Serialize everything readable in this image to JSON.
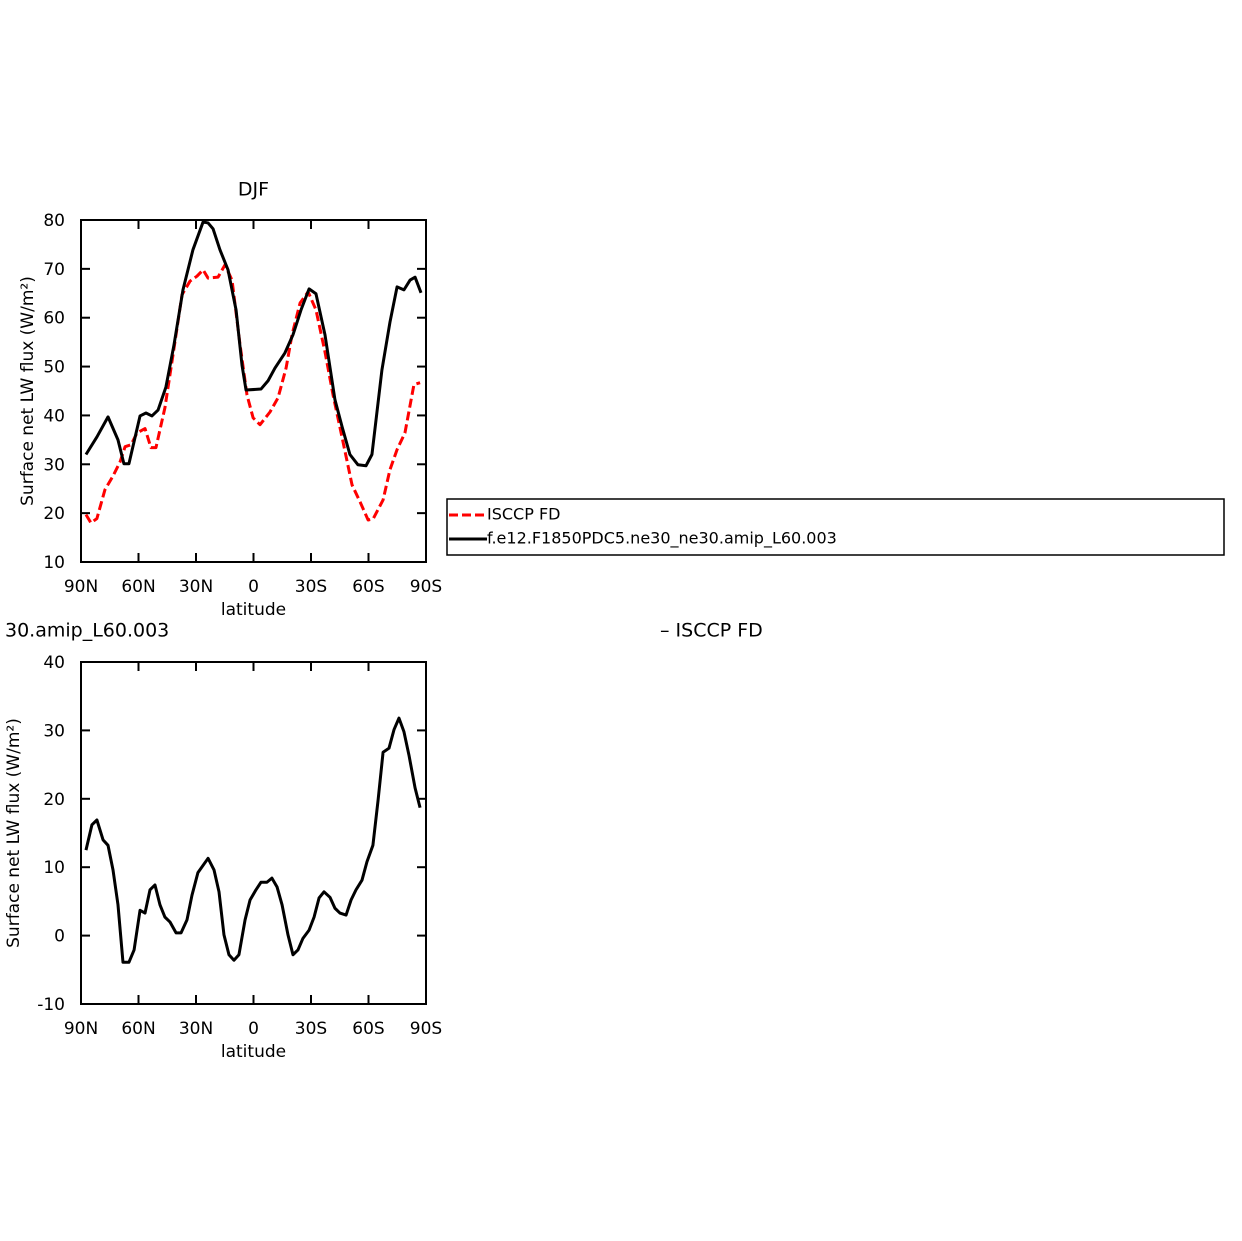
{
  "chart_data": [
    {
      "type": "line",
      "title": "DJF",
      "xlabel": "latitude",
      "ylabel": "Surface net LW flux (W/m²)",
      "xlim": [
        90,
        -90
      ],
      "xticks": [
        {
          "value": 90,
          "label": "90N"
        },
        {
          "value": 60,
          "label": "60N"
        },
        {
          "value": 30,
          "label": "30N"
        },
        0,
        {
          "value": -30,
          "label": "30S"
        },
        {
          "value": -60,
          "label": "60S"
        },
        {
          "value": -90,
          "label": "90S"
        }
      ],
      "ylim": [
        10,
        80
      ],
      "yticks": [
        10,
        20,
        30,
        40,
        50,
        60,
        70,
        80
      ],
      "legend": "right",
      "series": [
        {
          "name": "ISCCP FD",
          "color": "#ff0000",
          "line_style": "dashed",
          "x": [
            87.4,
            84.8,
            81.7,
            77.5,
            73.3,
            69.6,
            67.0,
            63.9,
            60.8,
            56.6,
            53.5,
            50.9,
            46.2,
            42.0,
            37.3,
            33.1,
            29.5,
            26.3,
            23.7,
            18.5,
            14.9,
            11.2,
            7.0,
            3.4,
            0.2,
            -3.4,
            -8.6,
            -12.8,
            -17.0,
            -20.1,
            -24.3,
            -28.5,
            -32.6,
            -37.3,
            -41.5,
            -46.7,
            -51.4,
            -55.6,
            -59.8,
            -62.4,
            -67.6,
            -71.2,
            -74.9,
            -79.0,
            -83.7,
            -86.9
          ],
          "values": [
            19.7,
            18.0,
            18.9,
            24.8,
            27.6,
            30.5,
            33.6,
            34.0,
            36.4,
            37.3,
            33.4,
            33.4,
            41.6,
            52.4,
            64.7,
            67.5,
            68.5,
            69.8,
            68.1,
            68.3,
            70.8,
            67.7,
            54.4,
            44.2,
            39.5,
            38.1,
            40.7,
            43.6,
            49.7,
            56.5,
            63.0,
            65.3,
            61.6,
            53.0,
            44.2,
            34.6,
            25.8,
            22.3,
            18.6,
            18.8,
            22.7,
            28.9,
            33.0,
            36.4,
            46.3,
            46.7
          ]
        },
        {
          "name": "f.e12.F1850PDC5.ne30_ne30.amip_L60.003",
          "color": "#000000",
          "line_style": "solid",
          "x": [
            87.4,
            81.7,
            75.9,
            70.7,
            67.6,
            65.0,
            59.2,
            56.1,
            53.0,
            49.8,
            45.7,
            41.5,
            36.8,
            31.6,
            26.3,
            23.7,
            21.1,
            17.5,
            13.3,
            9.1,
            6.0,
            3.9,
            -3.9,
            -7.6,
            -11.2,
            -16.4,
            -20.6,
            -24.8,
            -29.0,
            -32.6,
            -37.3,
            -42.5,
            -46.2,
            -50.3,
            -54.5,
            -58.7,
            -61.8,
            -67.0,
            -71.2,
            -74.9,
            -78.5,
            -81.7,
            -84.3,
            -87.4
          ],
          "values": [
            32.0,
            35.6,
            39.7,
            35.0,
            30.1,
            30.1,
            39.9,
            40.5,
            39.9,
            41.1,
            45.8,
            54.4,
            65.7,
            73.9,
            79.6,
            79.4,
            78.2,
            73.9,
            69.8,
            61.6,
            50.3,
            45.2,
            45.4,
            47.1,
            49.7,
            52.8,
            56.5,
            61.6,
            65.9,
            64.9,
            56.5,
            43.2,
            37.7,
            32.0,
            29.9,
            29.7,
            32.0,
            49.3,
            59.1,
            66.3,
            65.7,
            67.7,
            68.3,
            65.1
          ]
        }
      ]
    },
    {
      "type": "line",
      "title_left": "30.amip_L60.003",
      "title_right": "– ISCCP FD",
      "xlabel": "latitude",
      "ylabel": "Surface net LW flux (W/m²)",
      "xlim": [
        90,
        -90
      ],
      "xticks": [
        {
          "value": 90,
          "label": "90N"
        },
        {
          "value": 60,
          "label": "60N"
        },
        {
          "value": 30,
          "label": "30N"
        },
        0,
        {
          "value": -30,
          "label": "30S"
        },
        {
          "value": -60,
          "label": "60S"
        },
        {
          "value": -90,
          "label": "90S"
        }
      ],
      "ylim": [
        -10,
        40
      ],
      "yticks": [
        -10,
        0,
        10,
        20,
        30,
        40
      ],
      "color": "#000000",
      "x": [
        87.4,
        84.3,
        81.7,
        78.5,
        75.9,
        73.3,
        70.7,
        68.1,
        65.0,
        62.3,
        59.2,
        56.6,
        54.0,
        51.4,
        48.8,
        46.2,
        43.6,
        40.4,
        37.8,
        34.7,
        32.1,
        29.0,
        23.7,
        20.6,
        18.0,
        15.4,
        12.8,
        10.2,
        7.6,
        4.4,
        1.8,
        -1.3,
        -3.9,
        -7.0,
        -9.6,
        -12.3,
        -14.9,
        -18.0,
        -20.6,
        -23.2,
        -25.8,
        -29.0,
        -31.6,
        -34.2,
        -36.8,
        -39.9,
        -42.5,
        -45.1,
        -48.3,
        -50.9,
        -53.5,
        -56.6,
        -59.2,
        -62.3,
        -65.0,
        -67.6,
        -70.7,
        -73.3,
        -75.9,
        -78.5,
        -81.1,
        -84.3,
        -86.9
      ],
      "values": [
        12.5,
        16.2,
        16.9,
        14.0,
        13.2,
        9.6,
        4.5,
        -3.9,
        -3.9,
        -2.1,
        3.7,
        3.3,
        6.7,
        7.4,
        4.5,
        2.7,
        2.0,
        0.4,
        0.4,
        2.3,
        5.9,
        9.2,
        11.3,
        9.6,
        6.4,
        0.1,
        -2.8,
        -3.6,
        -2.8,
        2.3,
        5.2,
        6.7,
        7.8,
        7.8,
        8.4,
        7.1,
        4.5,
        0.1,
        -2.8,
        -2.1,
        -0.4,
        0.8,
        2.7,
        5.5,
        6.4,
        5.6,
        4.0,
        3.3,
        3.0,
        5.2,
        6.7,
        8.1,
        10.8,
        13.2,
        19.8,
        26.8,
        27.4,
        30.1,
        31.8,
        29.8,
        26.4,
        21.6,
        18.7
      ]
    }
  ]
}
